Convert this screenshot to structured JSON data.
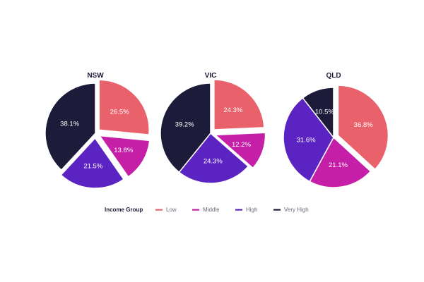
{
  "chart_data": {
    "type": "pie",
    "categories": [
      "Low",
      "Middle",
      "High",
      "Very High"
    ],
    "colors": [
      "#e8616b",
      "#c41fa6",
      "#5b24c2",
      "#1c1c3a"
    ],
    "legend": {
      "title": "Income Group",
      "position": "bottom-center"
    },
    "pies": [
      {
        "name": "NSW",
        "values": [
          26.5,
          13.8,
          21.5,
          38.1
        ],
        "labels": [
          "26.5%",
          "13.8%",
          "21.5%",
          "38.1%"
        ],
        "exploded": [
          true,
          true,
          true,
          false
        ]
      },
      {
        "name": "VIC",
        "values": [
          24.3,
          12.2,
          24.3,
          39.2
        ],
        "labels": [
          "24.3%",
          "12.2%",
          "24.3%",
          "39.2%"
        ],
        "exploded": [
          true,
          true,
          false,
          false
        ]
      },
      {
        "name": "QLD",
        "values": [
          36.8,
          21.1,
          31.6,
          10.5
        ],
        "labels": [
          "36.8%",
          "21.1%",
          "31.6%",
          "10.5%"
        ],
        "exploded": [
          true,
          false,
          false,
          false
        ]
      }
    ]
  }
}
